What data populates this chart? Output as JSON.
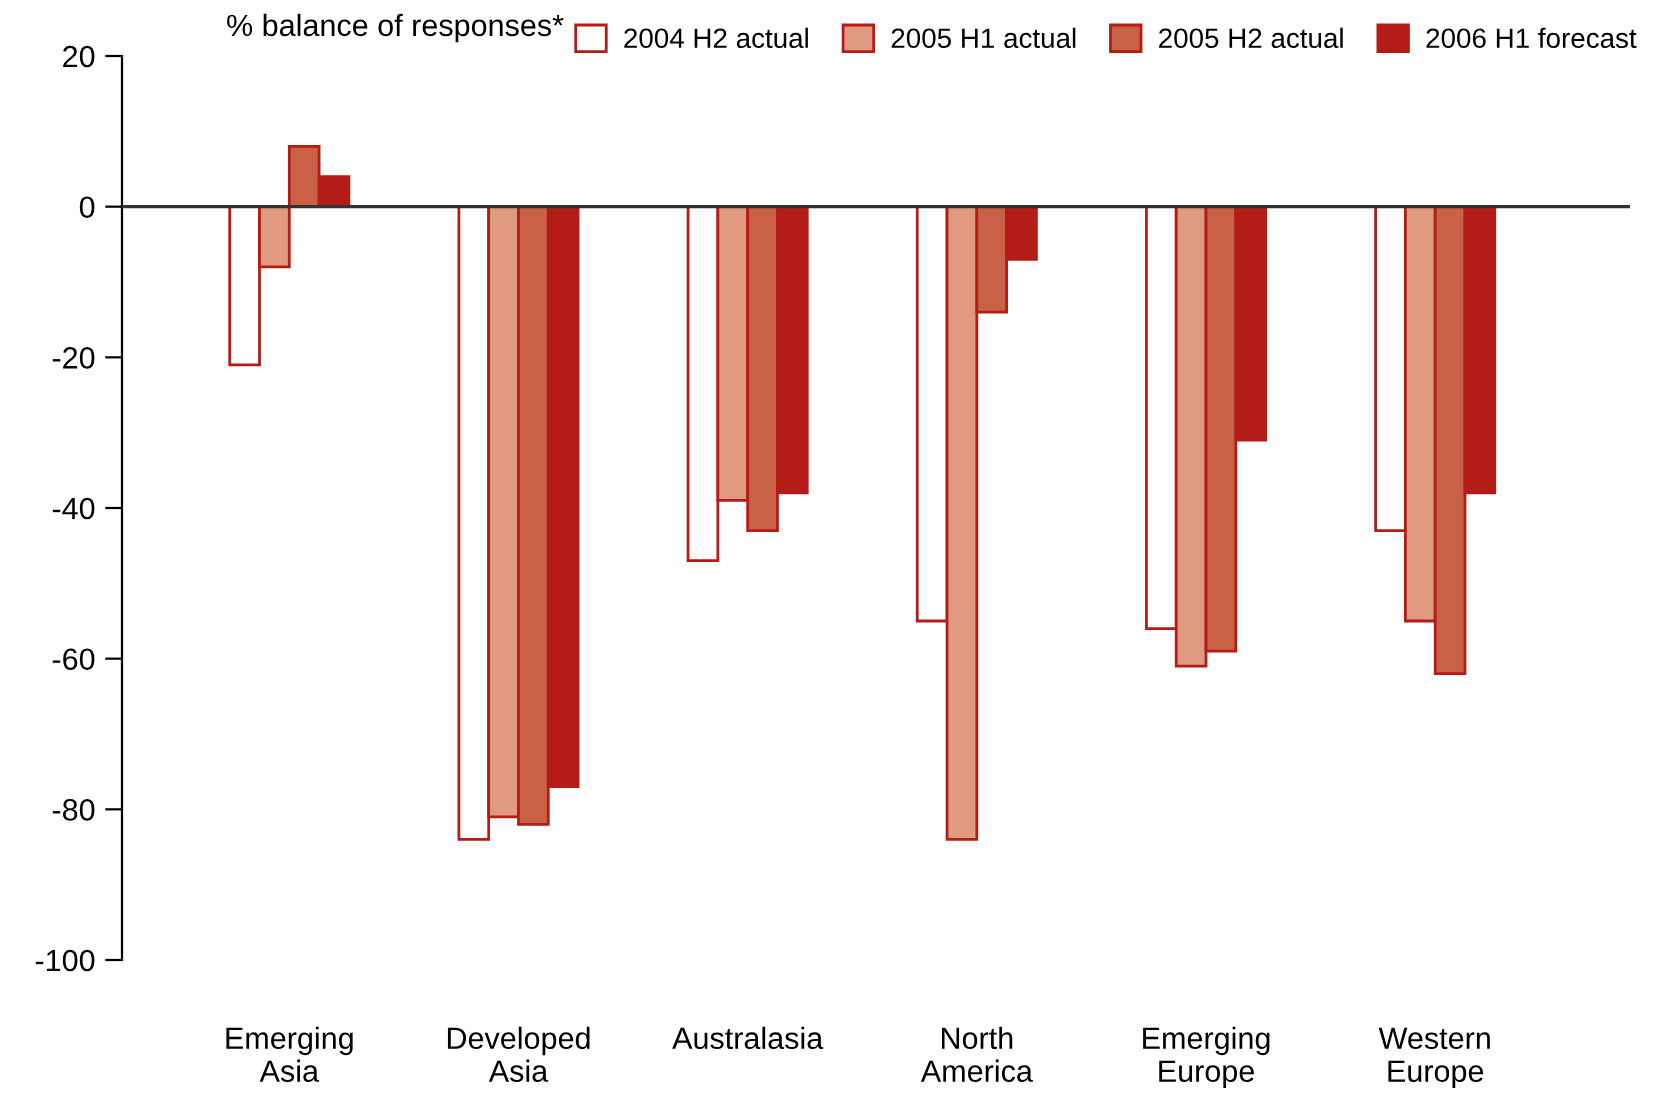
{
  "chart_data": {
    "type": "bar",
    "ylabel": "% balance of responses*",
    "categories": [
      "Emerging\nAsia",
      "Developed\nAsia",
      "Australasia",
      "North\nAmerica",
      "Emerging\nEurope",
      "Western\nEurope"
    ],
    "series": [
      {
        "name": "2004 H2 actual",
        "color": "#ffffff",
        "values": [
          -21,
          -84,
          -47,
          -55,
          -56,
          -43
        ]
      },
      {
        "name": "2005 H1 actual",
        "color": "#e09a80",
        "values": [
          -8,
          -81,
          -39,
          -84,
          -61,
          -55
        ]
      },
      {
        "name": "2005 H2 actual",
        "color": "#c86146",
        "values": [
          8,
          -82,
          -43,
          -14,
          -59,
          -62
        ]
      },
      {
        "name": "2006 H1 forecast",
        "color": "#b31c17",
        "values": [
          4,
          -77,
          -38,
          -7,
          -31,
          -38
        ]
      }
    ],
    "ylim": [
      -100,
      20
    ],
    "yticks": [
      -100,
      -80,
      -60,
      -40,
      -20,
      0,
      20
    ],
    "ref_lines": [
      {
        "axis": "y",
        "value": 0,
        "color": "#333333"
      }
    ],
    "legend": "top",
    "grid": false
  }
}
